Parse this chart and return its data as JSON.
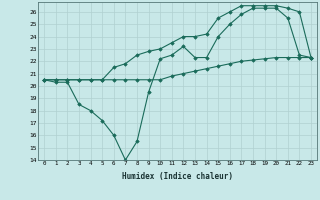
{
  "line1_x": [
    0,
    1,
    2,
    3,
    4,
    5,
    6,
    7,
    8,
    9,
    10,
    11,
    12,
    13,
    14,
    15,
    16,
    17,
    18,
    19,
    20,
    21,
    22,
    23
  ],
  "line1_y": [
    20.5,
    20.5,
    20.5,
    20.5,
    20.5,
    20.5,
    20.5,
    20.5,
    20.5,
    20.5,
    20.5,
    20.8,
    21.0,
    21.2,
    21.4,
    21.6,
    21.8,
    22.0,
    22.1,
    22.2,
    22.3,
    22.3,
    22.3,
    22.3
  ],
  "line2_x": [
    0,
    1,
    2,
    3,
    4,
    5,
    6,
    7,
    8,
    9,
    10,
    11,
    12,
    13,
    14,
    15,
    16,
    17,
    18,
    19,
    20,
    21,
    22,
    23
  ],
  "line2_y": [
    20.5,
    20.3,
    20.3,
    18.5,
    18.0,
    17.2,
    16.0,
    14.0,
    15.5,
    19.5,
    22.2,
    22.5,
    23.2,
    22.3,
    22.3,
    24.0,
    25.0,
    25.8,
    26.3,
    26.3,
    26.3,
    25.5,
    22.5,
    22.3
  ],
  "line3_x": [
    0,
    1,
    2,
    3,
    4,
    5,
    6,
    7,
    8,
    9,
    10,
    11,
    12,
    13,
    14,
    15,
    16,
    17,
    18,
    19,
    20,
    21,
    22,
    23
  ],
  "line3_y": [
    20.5,
    20.5,
    20.5,
    20.5,
    20.5,
    20.5,
    21.5,
    21.8,
    22.5,
    22.8,
    23.0,
    23.5,
    24.0,
    24.0,
    24.2,
    25.5,
    26.0,
    26.5,
    26.5,
    26.5,
    26.5,
    26.3,
    26.0,
    22.3
  ],
  "color": "#1a6b5a",
  "bg_color": "#c8e8e8",
  "grid_color": "#b0d0d0",
  "xlabel": "Humidex (Indice chaleur)",
  "ylim": [
    14,
    26.8
  ],
  "xlim": [
    -0.5,
    23.5
  ],
  "yticks": [
    14,
    15,
    16,
    17,
    18,
    19,
    20,
    21,
    22,
    23,
    24,
    25,
    26
  ],
  "xticks": [
    0,
    1,
    2,
    3,
    4,
    5,
    6,
    7,
    8,
    9,
    10,
    11,
    12,
    13,
    14,
    15,
    16,
    17,
    18,
    19,
    20,
    21,
    22,
    23
  ]
}
